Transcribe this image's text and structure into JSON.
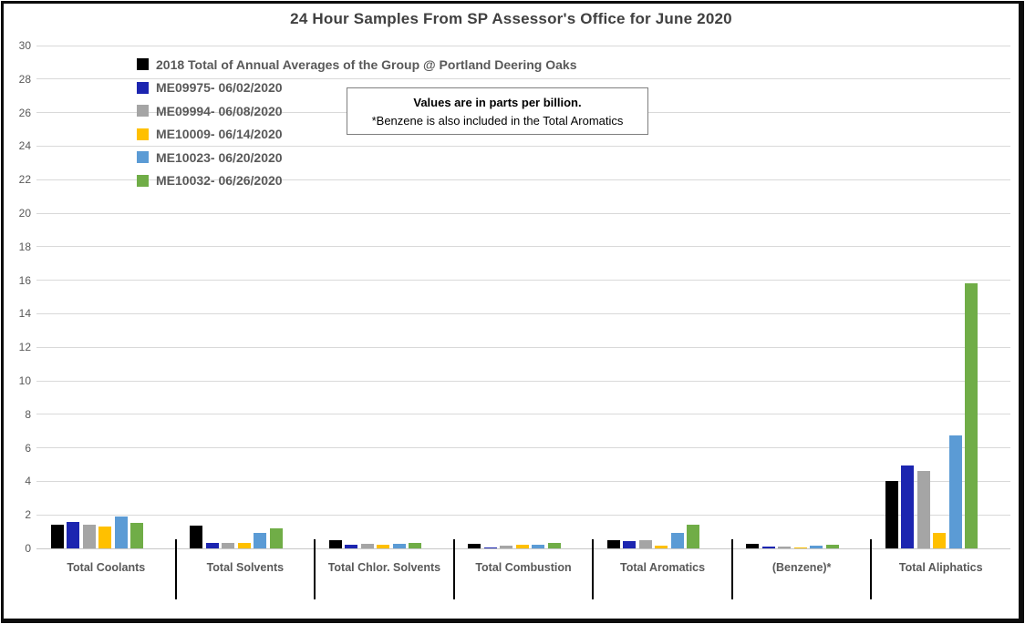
{
  "frame": {
    "background": "#ffffff",
    "border_color": "#0d0d0d"
  },
  "note": {
    "line1": "Values are in parts per billion.",
    "line2": "*Benzene is also included in the Total Aromatics"
  },
  "chart_data": {
    "type": "bar",
    "title": "24 Hour Samples From SP Assessor's Office for June 2020",
    "categories": [
      "Total Coolants",
      "Total Solvents",
      "Total Chlor. Solvents",
      "Total Combustion",
      "Total Aromatics",
      "(Benzene)*",
      "Total Aliphatics"
    ],
    "series": [
      {
        "name": "2018 Total of Annual Averages of the Group @ Portland Deering Oaks",
        "color": "#000000",
        "values": [
          1.4,
          1.35,
          0.5,
          0.27,
          0.5,
          0.25,
          4.0
        ]
      },
      {
        "name": "ME09975- 06/02/2020",
        "color": "#1c25b0",
        "values": [
          1.55,
          0.35,
          0.2,
          0.07,
          0.45,
          0.13,
          4.95
        ]
      },
      {
        "name": "ME09994- 06/08/2020",
        "color": "#a5a5a5",
        "values": [
          1.4,
          0.3,
          0.27,
          0.16,
          0.5,
          0.12,
          4.6
        ]
      },
      {
        "name": "ME10009- 06/14/2020",
        "color": "#ffc000",
        "values": [
          1.3,
          0.3,
          0.22,
          0.22,
          0.18,
          0.06,
          0.9
        ]
      },
      {
        "name": "ME10023- 06/20/2020",
        "color": "#5b9bd5",
        "values": [
          1.9,
          0.9,
          0.27,
          0.24,
          0.9,
          0.18,
          6.75
        ]
      },
      {
        "name": "ME10032- 06/26/2020",
        "color": "#70ad47",
        "values": [
          1.5,
          1.2,
          0.3,
          0.3,
          1.4,
          0.21,
          15.8
        ]
      }
    ],
    "ylim": [
      0,
      30
    ],
    "ytick_step": 2,
    "grid": true,
    "gridline_color": "#d9d9d9",
    "axis_label_color": "#595959",
    "title_color": "#404040",
    "legend_position": "top-left-inside",
    "xlabel": "",
    "ylabel": ""
  }
}
